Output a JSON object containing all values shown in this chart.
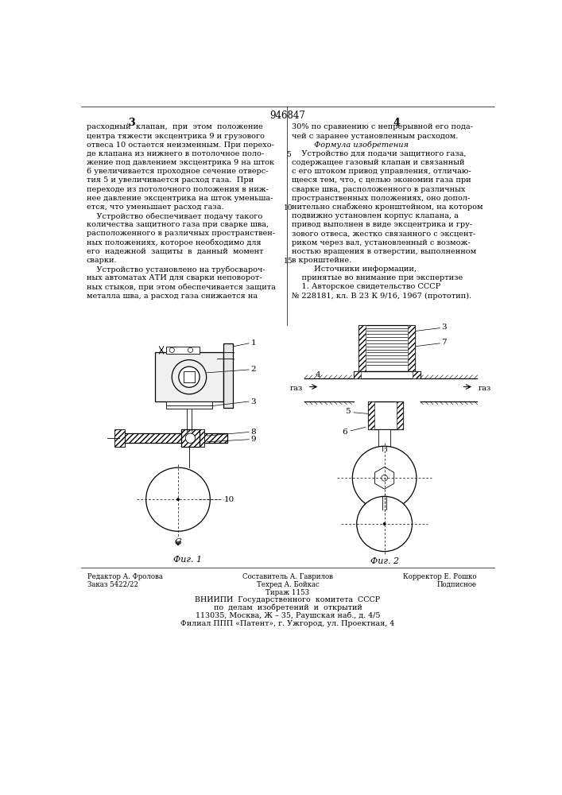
{
  "patent_number": "946847",
  "col1_lines": [
    "расходный  клапан,  при  этом  положение",
    "центра тяжести эксцентрика 9 и грузового",
    "отвеса 10 остается неизменным. При перехо-",
    "де клапана из нижнего в потолочное поло-",
    "жение под давлением эксцентрика 9 на шток",
    "6 увеличивается проходное сечение отверс-",
    "тия 5 и увеличивается расход газа.  При",
    "переходе из потолочного положения в ниж-",
    "нее давление эксцентрика на шток уменьша-",
    "ется, что уменьшает расход газа.",
    "    Устройство обеспечивает подачу такого",
    "количества защитного газа при сварке шва,",
    "расположенного в различных пространствен-",
    "ных положениях, которое необходимо для",
    "его  надежной  защиты  в  данный  момент",
    "сварки.",
    "    Устройство установлено на трубосвароч-",
    "ных автоматах АТИ для сварки неповорот-",
    "ных стыков, при этом обеспечивается защита",
    "металла шва, а расход газа снижается на"
  ],
  "col2_lines": [
    "30% по сравнению с непрерывной его пода-",
    "чей с заранее установленным расходом.",
    "         Формула изобретения",
    "    Устройство для подачи защитного газа,",
    "содержащее газовый клапан и связанный",
    "с его штоком привод управления, отличаю-",
    "щееся тем, что, с целью экономии газа при",
    "сварке шва, расположенного в различных",
    "пространственных положениях, оно допол-",
    "нительно снабжено кронштейном, на котором",
    "подвижно установлен корпус клапана, а",
    "привод выполнен в виде эксцентрика и гру-",
    "зового отвеса, жестко связанного с эксцент-",
    "риком через вал, установленный с возмож-",
    "ностью вращения в отверстии, выполненном",
    "в кронштейне.",
    "         Источники информации,",
    "    принятые во внимание при экспертизе",
    "    1. Авторское свидетельство СССР",
    "№ 228181, кл. В 23 К 9/16, 1967 (прототип)."
  ],
  "line_numbers": {
    "5": 4,
    "10": 9,
    "15": 16
  },
  "fig1_label": "Фиг. 1",
  "fig2_label": "Фиг. 2",
  "editor_left": [
    "Редактор А. Фролова",
    "Заказ 5422/22"
  ],
  "editor_center": [
    "Составитель А. Гаврилов",
    "Техред А. Бойкас",
    "Тираж 1153"
  ],
  "editor_right": [
    "Корректор Е. Рошко",
    "Подписное"
  ],
  "vnipi": [
    "ВНИИПИ  Государственного  комитета  СССР",
    "по  делам  изобретений  и  открытий",
    "113035, Москва, Ж – 35, Раушская наб., д. 4/5",
    "Филиал ППП «Патент», г. Ужгород, ул. Проектная, 4"
  ],
  "bg": "#ffffff",
  "fg": "#000000"
}
